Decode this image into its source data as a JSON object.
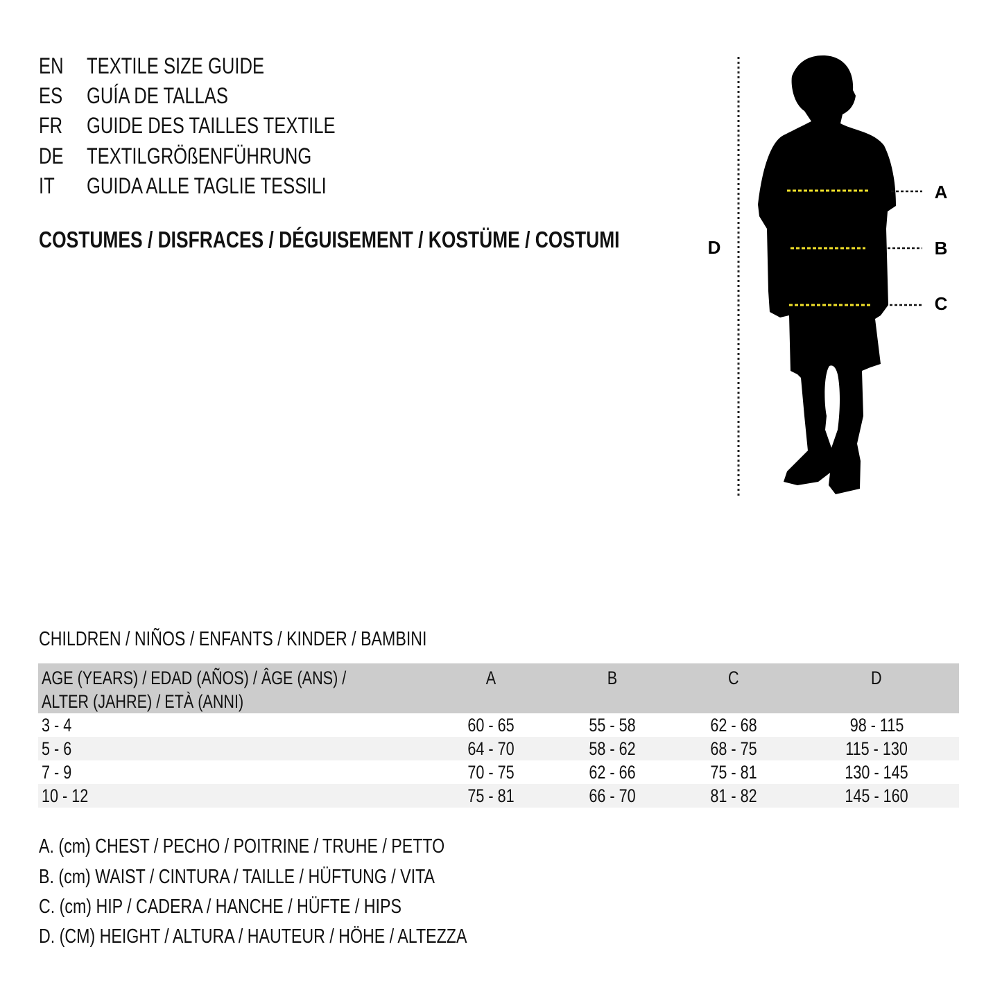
{
  "languages": [
    {
      "code": "EN",
      "title": "TEXTILE SIZE GUIDE"
    },
    {
      "code": "ES",
      "title": "GUÍA DE TALLAS"
    },
    {
      "code": "FR",
      "title": "GUIDE DES TAILLES TEXTILE"
    },
    {
      "code": "DE",
      "title": "TEXTILGRÖßENFÜHRUNG"
    },
    {
      "code": "IT",
      "title": "GUIDA ALLE TAGLIE TESSILI"
    }
  ],
  "subtitle": "COSTUMES / DISFRACES / DÉGUISEMENT / KOSTÜME / COSTUMI",
  "figure": {
    "labels": {
      "a": "A",
      "b": "B",
      "c": "C",
      "d": "D"
    },
    "measure_line_color": "#f2e12a",
    "silhouette": "child-silhouette-icon"
  },
  "section_title": "CHILDREN / NIÑOS / ENFANTS / KINDER / BAMBINI",
  "table": {
    "header": {
      "age_line1": "AGE (YEARS) / EDAD (AÑOS) / ÂGE (ANS) /",
      "age_line2": "ALTER (JAHRE) / ETÀ (ANNI)",
      "a": "A",
      "b": "B",
      "c": "C",
      "d": "D"
    },
    "rows": [
      [
        "3 - 4",
        "60 - 65",
        "55 - 58",
        "62 - 68",
        "98 - 115"
      ],
      [
        "5 - 6",
        "64 - 70",
        "58 - 62",
        "68 - 75",
        "115 - 130"
      ],
      [
        "7 - 9",
        "70 - 75",
        "62 - 66",
        "75 - 81",
        "130 - 145"
      ],
      [
        "10 - 12",
        "75 - 81",
        "66 - 70",
        "81 - 82",
        "145 - 160"
      ]
    ],
    "header_bg": "#cccccc",
    "stripe_bg": "#f2f2f2"
  },
  "legend": [
    "A. (cm) CHEST / PECHO / POITRINE / TRUHE / PETTO",
    "B. (cm) WAIST / CINTURA / TAILLE / HÜFTUNG / VITA",
    "C. (cm) HIP / CADERA / HANCHE / HÜFTE / HIPS",
    "D. (CM) HEIGHT / ALTURA / HAUTEUR / HÖHE / ALTEZZA"
  ]
}
